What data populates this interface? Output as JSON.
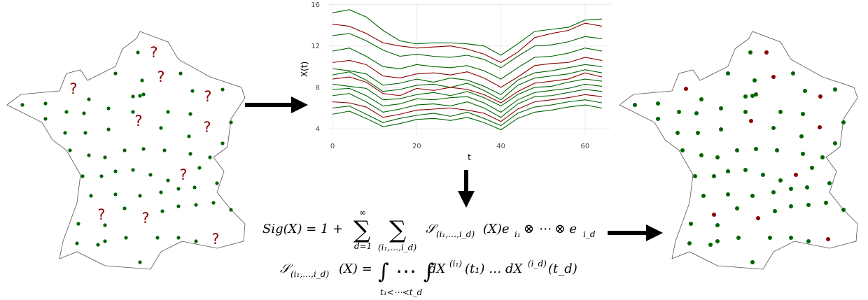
{
  "left_map": {
    "markers": [
      "?",
      "?",
      "?",
      "?",
      "?",
      "?",
      "?",
      "?",
      "?",
      "?"
    ]
  },
  "chart_data": {
    "type": "line",
    "x_label": "t",
    "y_label": "X(t)",
    "xlim": [
      -1,
      66
    ],
    "ylim": [
      3.4,
      16.1
    ],
    "xticks": [
      0,
      20,
      40,
      60
    ],
    "yticks": [
      4,
      8,
      12,
      16
    ],
    "grid": true,
    "x": [
      0,
      4,
      8,
      12,
      16,
      20,
      24,
      28,
      32,
      36,
      40,
      44,
      48,
      52,
      56,
      60,
      64
    ],
    "series": [
      {
        "color": "#006400",
        "values": [
          15.2,
          15.5,
          14.8,
          13.5,
          12.5,
          12.2,
          12.3,
          12.3,
          12.2,
          12.0,
          11.1,
          12.2,
          13.4,
          13.6,
          13.8,
          14.5,
          14.6
        ]
      },
      {
        "color": "#8b0000",
        "values": [
          14.1,
          13.9,
          13.2,
          12.3,
          12.0,
          11.8,
          11.9,
          12.0,
          11.7,
          11.2,
          10.4,
          11.4,
          12.8,
          13.2,
          13.5,
          14.2,
          13.9
        ]
      },
      {
        "color": "#006400",
        "values": [
          13.0,
          13.2,
          12.5,
          11.6,
          11.0,
          11.2,
          11.0,
          10.9,
          11.1,
          10.7,
          9.9,
          11.0,
          12.0,
          12.1,
          12.4,
          12.9,
          12.7
        ]
      },
      {
        "color": "#006400",
        "values": [
          11.5,
          11.8,
          11.0,
          10.0,
          9.8,
          10.2,
          10.0,
          9.9,
          10.1,
          9.6,
          8.8,
          9.9,
          10.9,
          11.0,
          11.3,
          11.8,
          11.5
        ]
      },
      {
        "color": "#8b0000",
        "values": [
          10.4,
          10.6,
          10.2,
          9.1,
          8.9,
          9.3,
          9.4,
          9.2,
          9.5,
          8.9,
          8.0,
          9.0,
          10.1,
          10.3,
          10.4,
          10.9,
          10.6
        ]
      },
      {
        "color": "#006400",
        "values": [
          9.8,
          9.6,
          9.3,
          8.2,
          8.4,
          8.8,
          8.5,
          8.9,
          8.7,
          8.1,
          7.3,
          8.7,
          9.4,
          9.6,
          9.9,
          10.2,
          10.0
        ]
      },
      {
        "color": "#006400",
        "values": [
          9.2,
          9.5,
          8.7,
          7.6,
          7.8,
          8.2,
          8.3,
          8.0,
          8.4,
          7.7,
          6.8,
          8.2,
          8.9,
          9.1,
          9.3,
          9.7,
          9.4
        ]
      },
      {
        "color": "#8b0000",
        "values": [
          8.8,
          9.0,
          8.5,
          7.4,
          7.2,
          7.9,
          7.7,
          8.0,
          7.8,
          7.3,
          6.5,
          7.6,
          8.4,
          8.6,
          8.8,
          9.4,
          9.0
        ]
      },
      {
        "color": "#006400",
        "values": [
          8.3,
          8.1,
          7.9,
          6.8,
          6.9,
          7.3,
          7.5,
          7.2,
          7.6,
          7.0,
          6.2,
          7.3,
          8.0,
          8.1,
          8.5,
          8.8,
          8.6
        ]
      },
      {
        "color": "#006400",
        "values": [
          7.8,
          7.9,
          7.2,
          6.2,
          6.4,
          6.9,
          6.8,
          7.0,
          7.1,
          6.5,
          5.6,
          6.8,
          7.5,
          7.7,
          7.9,
          8.3,
          8.1
        ]
      },
      {
        "color": "#006400",
        "values": [
          7.2,
          7.4,
          6.6,
          5.6,
          5.9,
          6.3,
          6.4,
          6.2,
          6.6,
          6.0,
          5.1,
          6.4,
          7.1,
          7.2,
          7.5,
          7.8,
          7.6
        ]
      },
      {
        "color": "#8b0000",
        "values": [
          6.6,
          6.5,
          6.1,
          5.1,
          5.4,
          5.8,
          5.9,
          6.0,
          5.8,
          5.5,
          4.7,
          5.9,
          6.6,
          6.8,
          7.0,
          7.3,
          7.1
        ]
      },
      {
        "color": "#006400",
        "values": [
          6.0,
          6.2,
          5.4,
          4.6,
          5.0,
          5.3,
          5.5,
          5.2,
          5.6,
          5.0,
          4.3,
          5.5,
          6.1,
          6.3,
          6.6,
          6.8,
          6.5
        ]
      },
      {
        "color": "#006400",
        "values": [
          5.4,
          5.7,
          5.0,
          4.2,
          4.5,
          4.9,
          5.0,
          4.8,
          5.1,
          4.6,
          3.9,
          5.0,
          5.6,
          5.8,
          6.1,
          6.3,
          6.0
        ]
      }
    ]
  },
  "formula": {
    "line1": {
      "lhs": "Sig(X) = 1 +",
      "sum": "∑",
      "sum1_top": "∞",
      "sum1_bottom": "d=1",
      "sum2_bottom": "(i₁,…,i_d)",
      "term": "𝒮",
      "term_sub": "(i₁,…,i_d)",
      "term_rest": "(X)e",
      "e1_sub": "i₁",
      "tensor": " ⊗ ⋯ ⊗ e",
      "ed_sub": "i_d"
    },
    "line2": {
      "term": "𝒮",
      "term_sub": "(i₁,…,i_d)",
      "eq": "(X) =",
      "integral": "∫ ⋯ ∫",
      "int_bottom": "t₁<⋯<t_d",
      "dx1": "dX",
      "sup1": "(i₁)",
      "mid": "(t₁) … dX",
      "sup2": "(i_d)",
      "end": "(t_d)"
    }
  }
}
